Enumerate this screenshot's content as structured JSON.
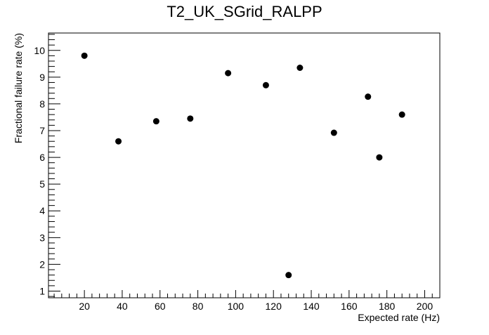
{
  "chart_data": {
    "type": "scatter",
    "title": "T2_UK_SGrid_RALPP",
    "xlabel": "Expected rate (Hz)",
    "ylabel": "Fractional failure rate (%)",
    "xlim": [
      1,
      208
    ],
    "ylim": [
      0.75,
      10.65
    ],
    "x_ticks": [
      20,
      40,
      60,
      80,
      100,
      120,
      140,
      160,
      180,
      200
    ],
    "y_ticks": [
      1,
      2,
      3,
      4,
      5,
      6,
      7,
      8,
      9,
      10
    ],
    "grid": false,
    "legend": "none",
    "marker_color": "#000000",
    "series": [
      {
        "points": [
          {
            "x": 20,
            "y": 9.8
          },
          {
            "x": 38,
            "y": 6.6
          },
          {
            "x": 58,
            "y": 7.35
          },
          {
            "x": 76,
            "y": 7.45
          },
          {
            "x": 96,
            "y": 9.15
          },
          {
            "x": 116,
            "y": 8.7
          },
          {
            "x": 128,
            "y": 1.6
          },
          {
            "x": 134,
            "y": 9.35
          },
          {
            "x": 152,
            "y": 6.92
          },
          {
            "x": 170,
            "y": 8.27
          },
          {
            "x": 176,
            "y": 6.0
          },
          {
            "x": 188,
            "y": 7.6
          }
        ]
      }
    ]
  }
}
